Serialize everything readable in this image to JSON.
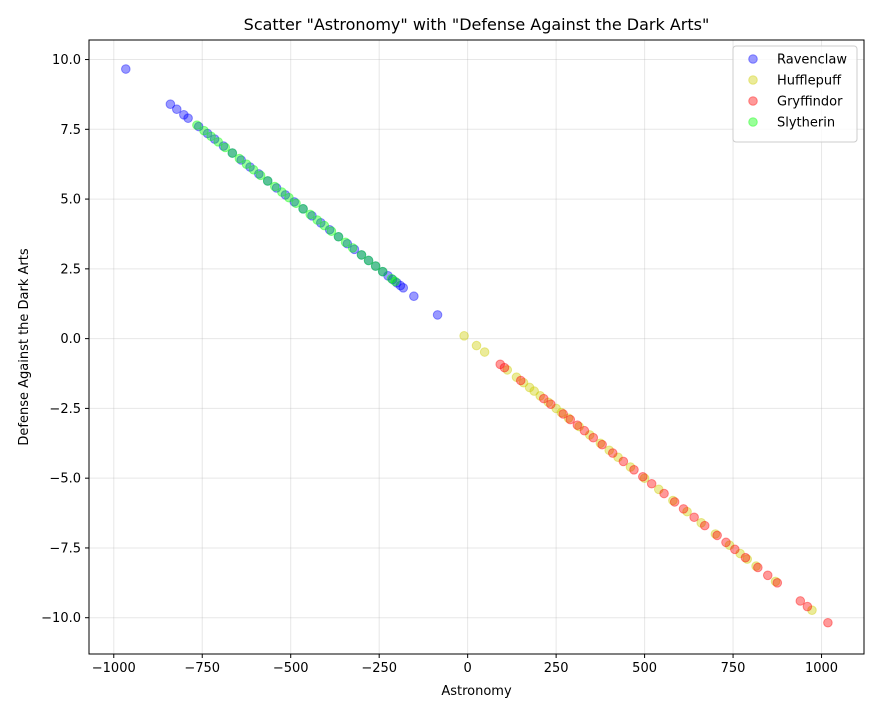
{
  "chart_data": {
    "type": "scatter",
    "title": "Scatter \"Astronomy\" with \"Defense Against the Dark Arts\"",
    "xlabel": "Astronomy",
    "ylabel": "Defense Against the Dark Arts",
    "xlim": [
      -1070,
      1120
    ],
    "ylim": [
      -11.3,
      10.7
    ],
    "x_ticks": [
      -1000,
      -750,
      -500,
      -250,
      0,
      250,
      500,
      750,
      1000
    ],
    "x_tick_labels": [
      "−1000",
      "−750",
      "−500",
      "−250",
      "0",
      "250",
      "500",
      "750",
      "1000"
    ],
    "y_ticks": [
      10,
      7.5,
      5,
      2.5,
      0,
      -2.5,
      -5,
      -7.5,
      -10
    ],
    "y_tick_labels": [
      "10.0",
      "7.5",
      "5.0",
      "2.5",
      "0.0",
      "−2.5",
      "−5.0",
      "−7.5",
      "−10.0"
    ],
    "grid": true,
    "legend_position": "top-right",
    "marker_alpha": 0.4,
    "series": [
      {
        "name": "Ravenclaw",
        "color": "#0000ff",
        "points": [
          [
            -966,
            9.66
          ],
          [
            -840,
            8.4
          ],
          [
            -822,
            8.22
          ],
          [
            -802,
            8.02
          ],
          [
            -790,
            7.9
          ],
          [
            -760,
            7.6
          ],
          [
            -735,
            7.35
          ],
          [
            -715,
            7.15
          ],
          [
            -690,
            6.9
          ],
          [
            -665,
            6.65
          ],
          [
            -640,
            6.4
          ],
          [
            -615,
            6.15
          ],
          [
            -590,
            5.9
          ],
          [
            -565,
            5.65
          ],
          [
            -540,
            5.4
          ],
          [
            -515,
            5.15
          ],
          [
            -490,
            4.9
          ],
          [
            -465,
            4.65
          ],
          [
            -440,
            4.4
          ],
          [
            -415,
            4.15
          ],
          [
            -390,
            3.9
          ],
          [
            -365,
            3.65
          ],
          [
            -340,
            3.4
          ],
          [
            -320,
            3.2
          ],
          [
            -300,
            3.0
          ],
          [
            -280,
            2.8
          ],
          [
            -260,
            2.6
          ],
          [
            -240,
            2.4
          ],
          [
            -225,
            2.25
          ],
          [
            -212,
            2.12
          ],
          [
            -200,
            2.0
          ],
          [
            -190,
            1.9
          ],
          [
            -182,
            1.82
          ],
          [
            -152,
            1.52
          ],
          [
            -85,
            0.85
          ]
        ]
      },
      {
        "name": "Hufflepuff",
        "color": "#cccc00",
        "points": [
          [
            -10,
            0.1
          ],
          [
            25,
            -0.25
          ],
          [
            48,
            -0.48
          ],
          [
            112,
            -1.12
          ],
          [
            138,
            -1.38
          ],
          [
            158,
            -1.58
          ],
          [
            175,
            -1.75
          ],
          [
            188,
            -1.88
          ],
          [
            205,
            -2.05
          ],
          [
            228,
            -2.28
          ],
          [
            250,
            -2.5
          ],
          [
            265,
            -2.65
          ],
          [
            285,
            -2.85
          ],
          [
            315,
            -3.15
          ],
          [
            345,
            -3.45
          ],
          [
            375,
            -3.75
          ],
          [
            400,
            -4.0
          ],
          [
            425,
            -4.25
          ],
          [
            460,
            -4.6
          ],
          [
            500,
            -5.0
          ],
          [
            540,
            -5.4
          ],
          [
            580,
            -5.8
          ],
          [
            620,
            -6.2
          ],
          [
            660,
            -6.6
          ],
          [
            700,
            -7.0
          ],
          [
            740,
            -7.4
          ],
          [
            770,
            -7.7
          ],
          [
            790,
            -7.9
          ],
          [
            815,
            -8.15
          ],
          [
            870,
            -8.7
          ],
          [
            973,
            -9.73
          ]
        ]
      },
      {
        "name": "Gryffindor",
        "color": "#ff0000",
        "points": [
          [
            92,
            -0.92
          ],
          [
            104,
            -1.04
          ],
          [
            150,
            -1.5
          ],
          [
            215,
            -2.15
          ],
          [
            235,
            -2.35
          ],
          [
            270,
            -2.7
          ],
          [
            290,
            -2.9
          ],
          [
            310,
            -3.1
          ],
          [
            330,
            -3.3
          ],
          [
            355,
            -3.55
          ],
          [
            380,
            -3.8
          ],
          [
            410,
            -4.1
          ],
          [
            440,
            -4.4
          ],
          [
            470,
            -4.7
          ],
          [
            495,
            -4.95
          ],
          [
            520,
            -5.2
          ],
          [
            555,
            -5.55
          ],
          [
            585,
            -5.85
          ],
          [
            610,
            -6.1
          ],
          [
            640,
            -6.4
          ],
          [
            670,
            -6.7
          ],
          [
            705,
            -7.05
          ],
          [
            730,
            -7.3
          ],
          [
            755,
            -7.55
          ],
          [
            785,
            -7.85
          ],
          [
            820,
            -8.2
          ],
          [
            848,
            -8.48
          ],
          [
            875,
            -8.75
          ],
          [
            940,
            -9.4
          ],
          [
            960,
            -9.6
          ],
          [
            1018,
            -10.18
          ]
        ]
      },
      {
        "name": "Slytherin",
        "color": "#00ff00",
        "points": [
          [
            -765,
            7.65
          ],
          [
            -745,
            7.45
          ],
          [
            -725,
            7.25
          ],
          [
            -705,
            7.05
          ],
          [
            -685,
            6.85
          ],
          [
            -665,
            6.65
          ],
          [
            -645,
            6.45
          ],
          [
            -625,
            6.25
          ],
          [
            -605,
            6.05
          ],
          [
            -585,
            5.85
          ],
          [
            -565,
            5.65
          ],
          [
            -545,
            5.45
          ],
          [
            -525,
            5.25
          ],
          [
            -505,
            5.05
          ],
          [
            -485,
            4.85
          ],
          [
            -465,
            4.65
          ],
          [
            -445,
            4.45
          ],
          [
            -425,
            4.25
          ],
          [
            -405,
            4.05
          ],
          [
            -385,
            3.85
          ],
          [
            -365,
            3.65
          ],
          [
            -345,
            3.45
          ],
          [
            -325,
            3.25
          ],
          [
            -300,
            3.0
          ],
          [
            -280,
            2.8
          ],
          [
            -260,
            2.6
          ],
          [
            -240,
            2.4
          ],
          [
            -215,
            2.15
          ],
          [
            -205,
            2.05
          ]
        ]
      }
    ]
  }
}
